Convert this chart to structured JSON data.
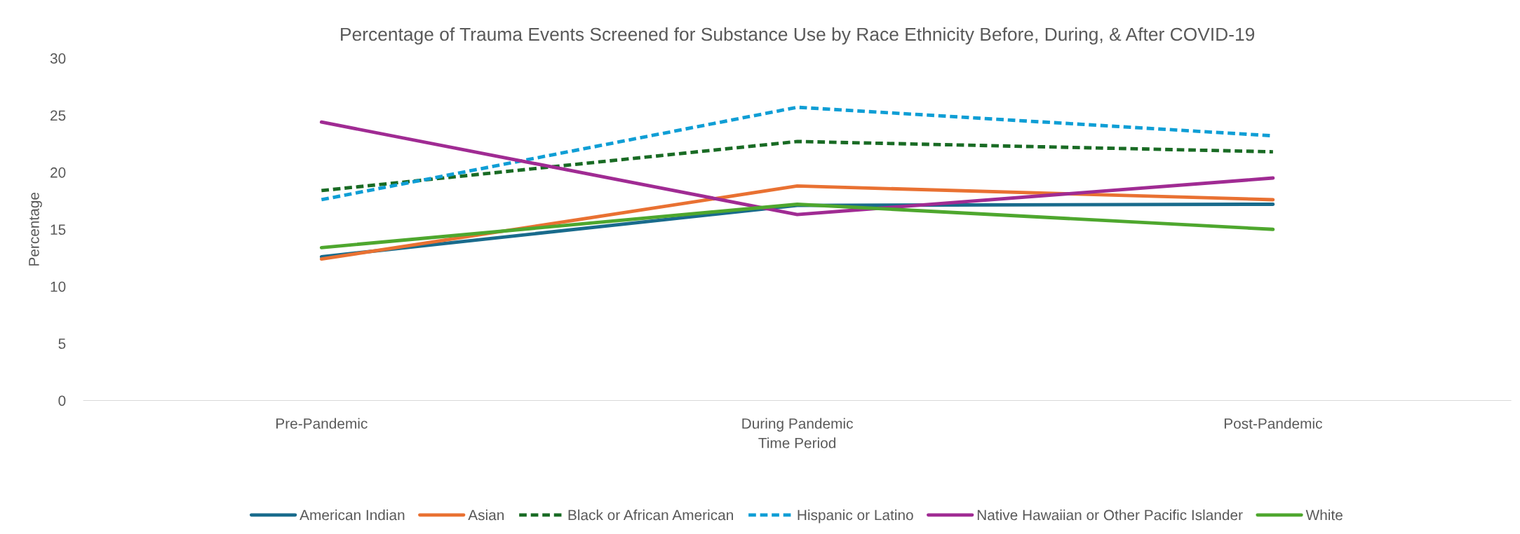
{
  "chart_data": {
    "type": "line",
    "title": "Percentage of Trauma Events Screened for Substance Use by Race Ethnicity Before, During, & After COVID-19",
    "xlabel": "Time Period",
    "ylabel": "Percentage",
    "categories": [
      "Pre-Pandemic",
      "During Pandemic",
      "Post-Pandemic"
    ],
    "ylim": [
      0,
      30
    ],
    "yticks": [
      0,
      5,
      10,
      15,
      20,
      25,
      30
    ],
    "grid": false,
    "legend": "bottom",
    "marker": "none",
    "series": [
      {
        "name": "American Indian",
        "color": "#196b8c",
        "line_style": "solid",
        "values": [
          12.6,
          17.1,
          17.2
        ]
      },
      {
        "name": "Asian",
        "color": "#e97132",
        "line_style": "solid",
        "values": [
          12.4,
          18.8,
          17.6
        ]
      },
      {
        "name": "Black or African American",
        "color": "#196b24",
        "line_style": "dashed",
        "values": [
          18.4,
          22.7,
          21.8
        ]
      },
      {
        "name": "Hispanic or Latino",
        "color": "#0f9ed5",
        "line_style": "dashed",
        "values": [
          17.6,
          25.7,
          23.2
        ]
      },
      {
        "name": "Native Hawaiian or Other Pacific Islander",
        "color": "#a02b93",
        "line_style": "solid",
        "values": [
          24.4,
          16.3,
          19.5
        ]
      },
      {
        "name": "White",
        "color": "#4ea72e",
        "line_style": "solid",
        "values": [
          13.4,
          17.2,
          15.0
        ]
      }
    ]
  }
}
